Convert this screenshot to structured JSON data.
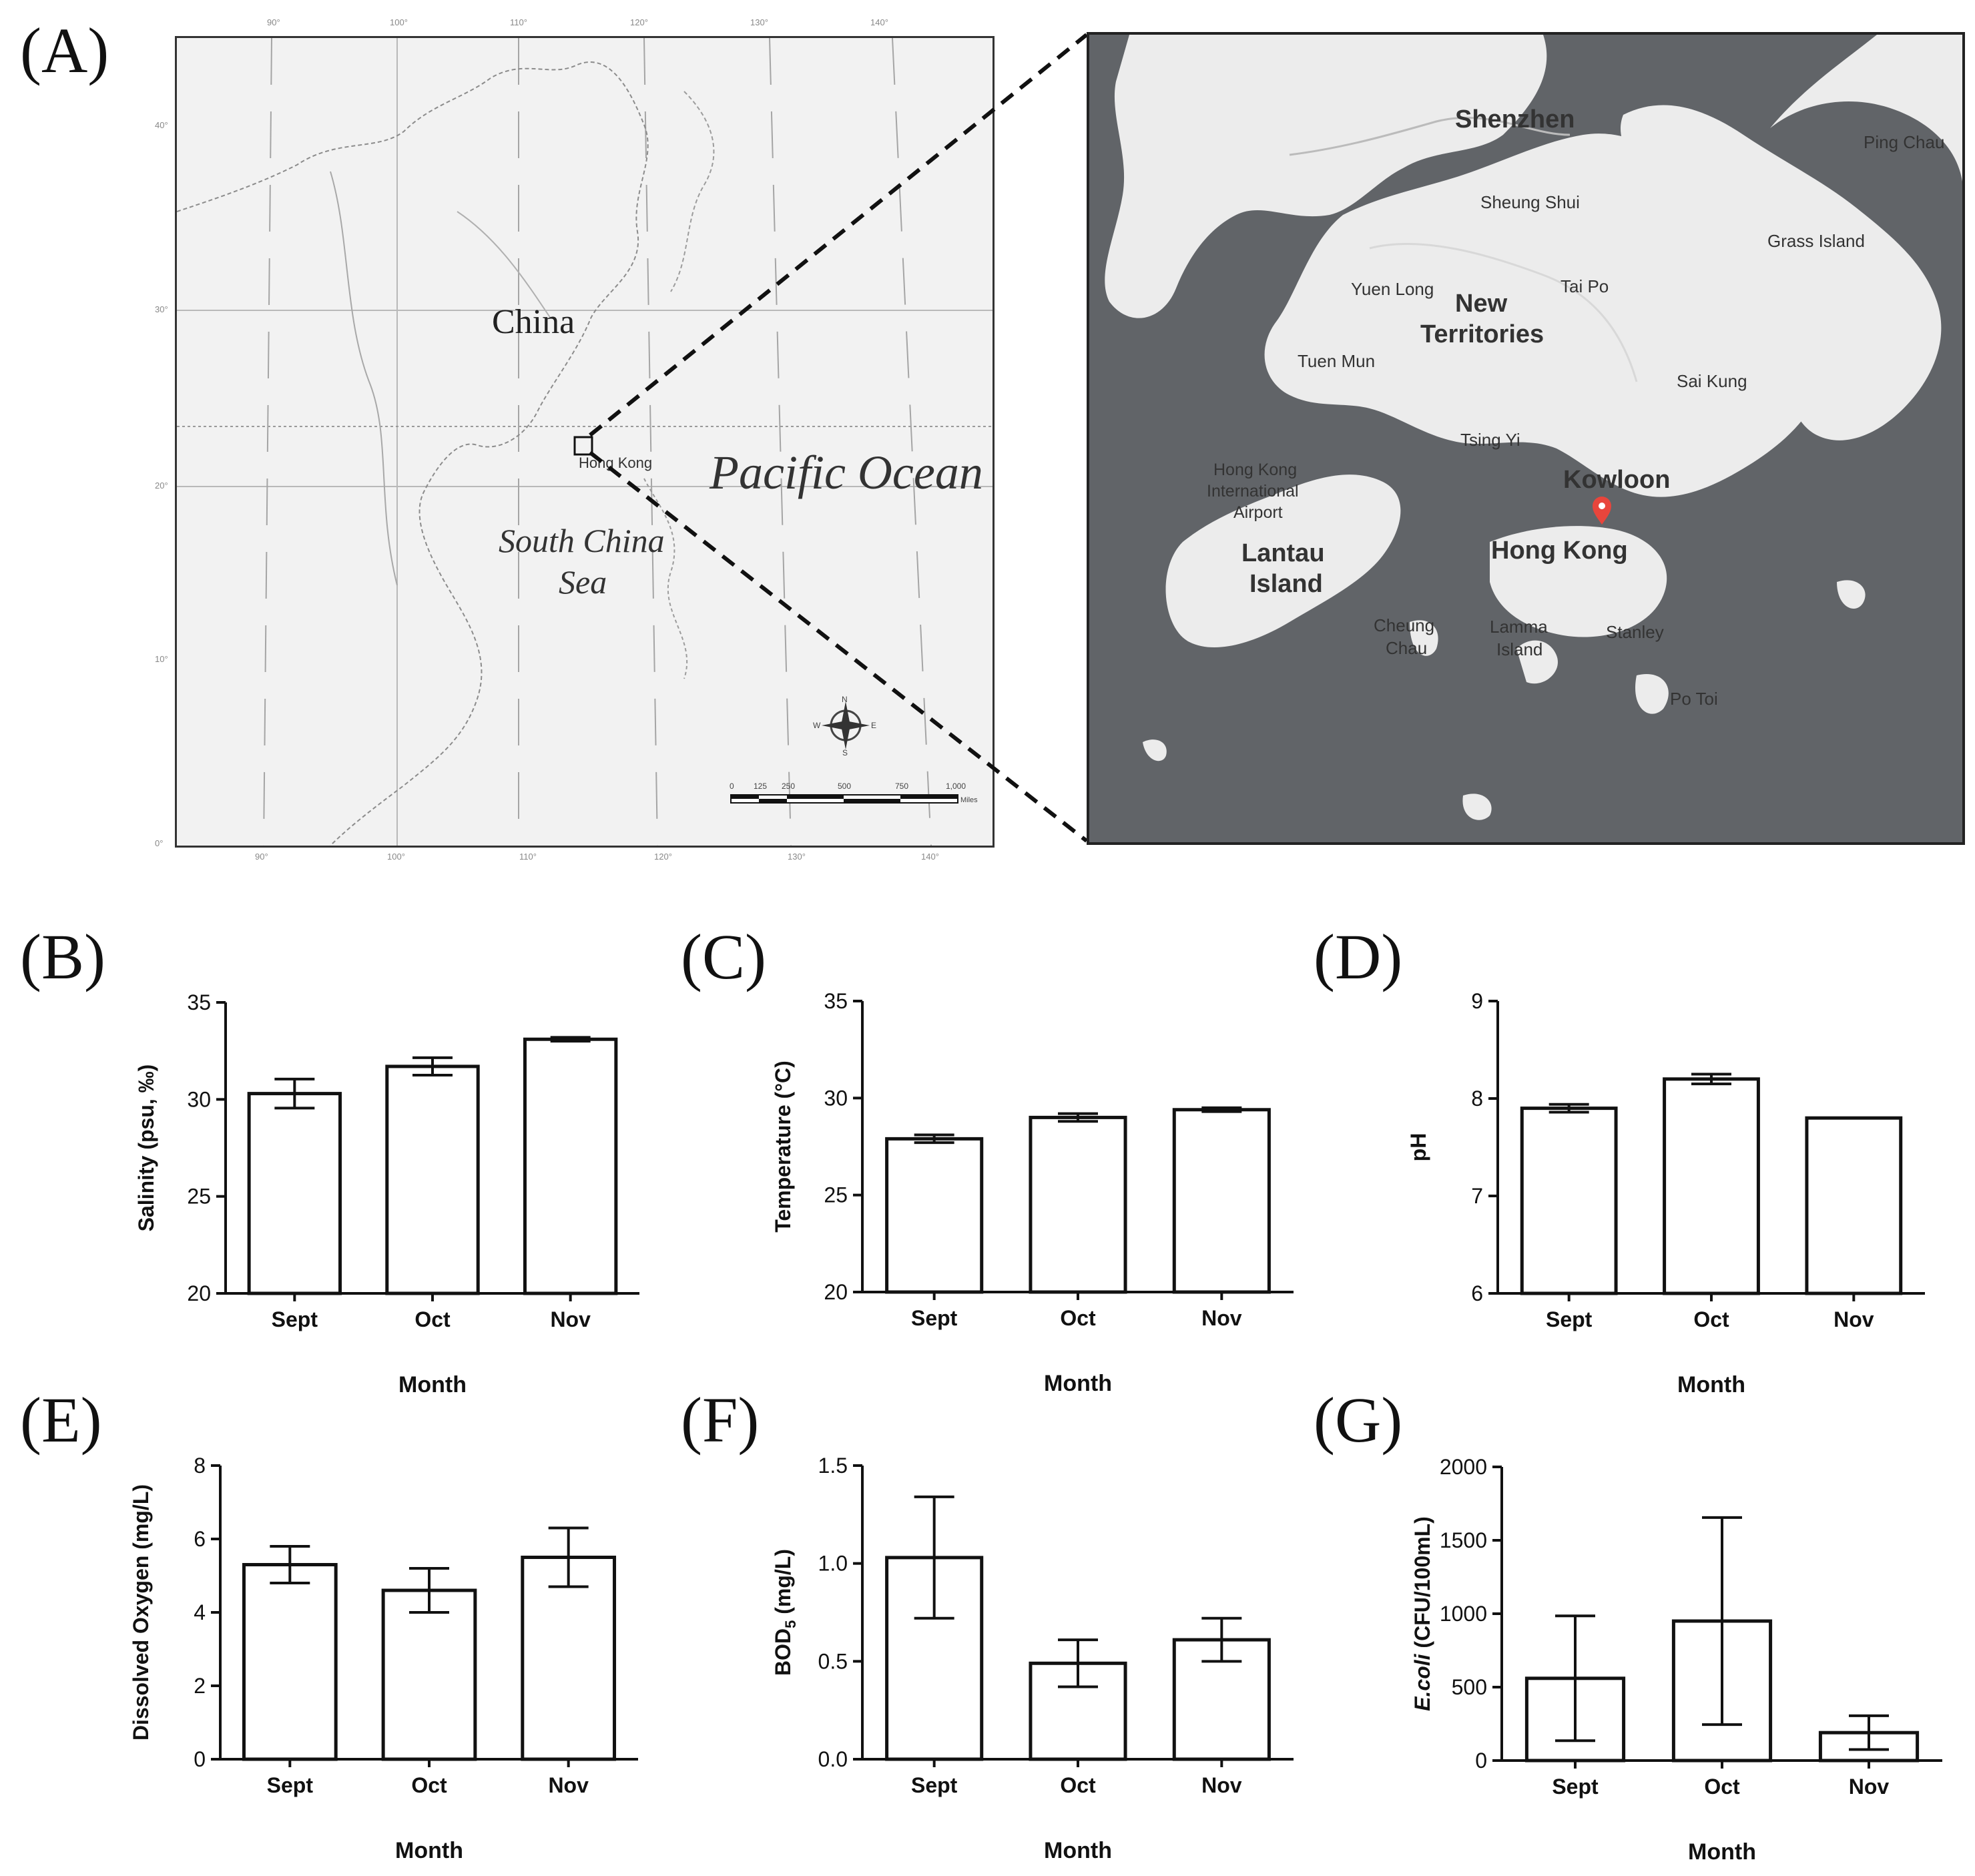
{
  "panels": {
    "a": "(A)",
    "b": "(B)",
    "c": "(C)",
    "d": "(D)",
    "e": "(E)",
    "f": "(F)",
    "g": "(G)"
  },
  "world_map": {
    "labels": {
      "china": "China",
      "pacific": "Pacific Ocean",
      "scs_line1": "South China",
      "scs_line2": "Sea",
      "hong_kong": "Hong Kong"
    },
    "scale_ticks": [
      "0",
      "125",
      "250",
      "500",
      "750",
      "1,000"
    ],
    "scale_unit": "Miles",
    "compass": {
      "n": "N",
      "s": "S",
      "e": "E",
      "w": "W"
    },
    "longitude_top": [
      "90°",
      "100°",
      "110°",
      "120°",
      "130°",
      "140°"
    ],
    "longitude_bottom": [
      "90°",
      "100°",
      "110°",
      "120°",
      "130°",
      "140°"
    ],
    "latitude": [
      "40°",
      "30°",
      "20°",
      "10°",
      "0°"
    ]
  },
  "hk_map": {
    "places": {
      "shenzhen": "Shenzhen",
      "ping_chau": "Ping Chau",
      "sheung_shui": "Sheung Shui",
      "grass_island": "Grass Island",
      "yuen_long": "Yuen Long",
      "new_territories_1": "New",
      "new_territories_2": "Territories",
      "tai_po": "Tai Po",
      "tuen_mun": "Tuen Mun",
      "sai_kung": "Sai Kung",
      "tsing_yi": "Tsing Yi",
      "airport_1": "Hong Kong",
      "airport_2": "International",
      "airport_3": "Airport",
      "kowloon": "Kowloon",
      "lantau_1": "Lantau",
      "lantau_2": "Island",
      "hong_kong": "Hong Kong",
      "cheung_chau_1": "Cheung",
      "cheung_chau_2": "Chau",
      "lamma_1": "Lamma",
      "lamma_2": "Island",
      "stanley": "Stanley",
      "po_toi": "Po Toi"
    },
    "marker_color": "#e8453c"
  },
  "chart_data": [
    {
      "id": "B",
      "type": "bar",
      "categories": [
        "Sept",
        "Oct",
        "Nov"
      ],
      "values": [
        30.3,
        31.7,
        33.1
      ],
      "errors": [
        0.75,
        0.45,
        0.1
      ],
      "ylabel": "Salinity (psu, ‰)",
      "xlabel": "Month",
      "ylim": [
        20,
        35
      ],
      "yticks": [
        "20",
        "25",
        "30",
        "35"
      ]
    },
    {
      "id": "C",
      "type": "bar",
      "categories": [
        "Sept",
        "Oct",
        "Nov"
      ],
      "values": [
        27.9,
        29.0,
        29.4
      ],
      "errors": [
        0.2,
        0.2,
        0.1
      ],
      "ylabel": "Temperature (°C)",
      "xlabel": "Month",
      "ylim": [
        20,
        35
      ],
      "yticks": [
        "20",
        "25",
        "30",
        "35"
      ]
    },
    {
      "id": "D",
      "type": "bar",
      "categories": [
        "Sept",
        "Oct",
        "Nov"
      ],
      "values": [
        7.9,
        8.2,
        7.8
      ],
      "errors": [
        0.04,
        0.05,
        0.0
      ],
      "ylabel": "pH",
      "xlabel": "Month",
      "ylim": [
        6,
        9
      ],
      "yticks": [
        "6",
        "7",
        "8",
        "9"
      ]
    },
    {
      "id": "E",
      "type": "bar",
      "categories": [
        "Sept",
        "Oct",
        "Nov"
      ],
      "values": [
        5.3,
        4.6,
        5.5
      ],
      "errors": [
        0.5,
        0.6,
        0.8
      ],
      "ylabel": "Dissolved Oxygen (mg/L)",
      "xlabel": "Month",
      "ylim": [
        0,
        8
      ],
      "yticks": [
        "0",
        "2",
        "4",
        "6",
        "8"
      ]
    },
    {
      "id": "F",
      "type": "bar",
      "categories": [
        "Sept",
        "Oct",
        "Nov"
      ],
      "values": [
        1.03,
        0.49,
        0.61
      ],
      "errors": [
        0.31,
        0.12,
        0.11
      ],
      "ylabel": "BOD",
      "ylabel_sub": "5",
      "ylabel_rest": " (mg/L)",
      "xlabel": "Month",
      "ylim": [
        0,
        1.5
      ],
      "yticks": [
        "0.0",
        "0.5",
        "1.0",
        "1.5"
      ]
    },
    {
      "id": "G",
      "type": "bar",
      "categories": [
        "Sept",
        "Oct",
        "Nov"
      ],
      "values": [
        560,
        950,
        190
      ],
      "errors": [
        425,
        705,
        115
      ],
      "ylabel": "E.coli",
      "ylabel_rest": " (CFU/100mL)",
      "xlabel": "Month",
      "ylim": [
        0,
        2000
      ],
      "yticks": [
        "0",
        "500",
        "1000",
        "1500",
        "2000"
      ]
    }
  ]
}
